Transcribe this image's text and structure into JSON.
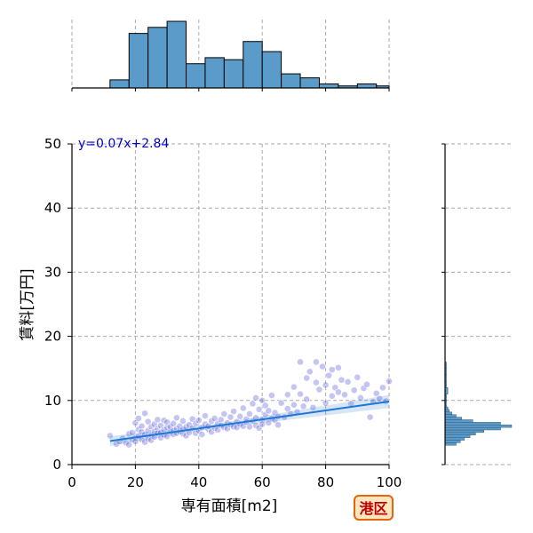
{
  "chart_data": {
    "type": "scatter",
    "xlabel": "専有面積[m2]",
    "ylabel": "賃料[万円]",
    "xlim": [
      0,
      100
    ],
    "ylim": [
      0,
      50
    ],
    "xticks": [
      0,
      20,
      40,
      60,
      80,
      100
    ],
    "yticks": [
      0,
      10,
      20,
      30,
      40,
      50
    ],
    "grid": true,
    "annotation": "y=0.07x+2.84",
    "badge": "港区",
    "regression": {
      "slope": 0.07,
      "intercept": 2.84,
      "x_range": [
        12,
        100
      ]
    },
    "colors": {
      "points": "#5a5ad6",
      "regression": "#1f77d4",
      "hist": "#5b9bc9",
      "annotation": "#0000cc",
      "badge_fill": "#ffe5c0",
      "badge_border": "#e8640a",
      "badge_text": "#c00000"
    },
    "x_histogram": {
      "bin_edges": [
        12,
        18,
        24,
        30,
        36,
        42,
        48,
        54,
        60,
        66,
        72,
        78,
        84,
        90,
        96,
        100
      ],
      "counts": [
        4,
        27,
        30,
        33,
        12,
        15,
        14,
        23,
        18,
        7,
        5,
        2,
        1,
        2,
        1
      ]
    },
    "y_histogram": {
      "bin_edges": [
        3,
        3.4,
        3.8,
        4.2,
        4.6,
        5.0,
        5.4,
        5.8,
        6.2,
        6.6,
        7.0,
        7.4,
        7.8,
        8.2,
        8.6,
        9.0,
        10.0,
        11.0,
        12.0,
        13.0,
        14.0,
        15.0,
        16.0
      ],
      "counts": [
        8,
        11,
        14,
        18,
        22,
        28,
        40,
        48,
        40,
        20,
        12,
        8,
        5,
        3,
        2,
        1,
        1,
        2,
        1,
        1,
        1,
        1
      ]
    },
    "points": [
      [
        12,
        4.5
      ],
      [
        14,
        3.2
      ],
      [
        15,
        3.6
      ],
      [
        16,
        4.1
      ],
      [
        17,
        3.4
      ],
      [
        18,
        4.8
      ],
      [
        18,
        3.1
      ],
      [
        19,
        5.0
      ],
      [
        19,
        3.9
      ],
      [
        20,
        6.5
      ],
      [
        20,
        4.2
      ],
      [
        20,
        3.6
      ],
      [
        21,
        5.5
      ],
      [
        21,
        7.2
      ],
      [
        21,
        4.4
      ],
      [
        22,
        6.0
      ],
      [
        22,
        3.9
      ],
      [
        22,
        5.1
      ],
      [
        23,
        4.7
      ],
      [
        23,
        8.0
      ],
      [
        23,
        3.5
      ],
      [
        24,
        5.3
      ],
      [
        24,
        6.7
      ],
      [
        24,
        4.0
      ],
      [
        25,
        5.9
      ],
      [
        25,
        4.6
      ],
      [
        25,
        3.8
      ],
      [
        26,
        5.2
      ],
      [
        26,
        6.3
      ],
      [
        26,
        4.3
      ],
      [
        27,
        5.6
      ],
      [
        27,
        4.9
      ],
      [
        27,
        7.0
      ],
      [
        28,
        5.0
      ],
      [
        28,
        6.1
      ],
      [
        28,
        4.2
      ],
      [
        29,
        5.4
      ],
      [
        29,
        6.9
      ],
      [
        29,
        4.6
      ],
      [
        30,
        5.8
      ],
      [
        30,
        4.4
      ],
      [
        30,
        6.6
      ],
      [
        31,
        5.1
      ],
      [
        31,
        5.9
      ],
      [
        32,
        4.7
      ],
      [
        32,
        6.4
      ],
      [
        32,
        5.3
      ],
      [
        33,
        5.6
      ],
      [
        33,
        4.9
      ],
      [
        33,
        7.3
      ],
      [
        34,
        5.2
      ],
      [
        34,
        6.0
      ],
      [
        35,
        4.8
      ],
      [
        35,
        6.8
      ],
      [
        35,
        5.5
      ],
      [
        36,
        5.9
      ],
      [
        36,
        4.5
      ],
      [
        37,
        6.2
      ],
      [
        37,
        5.0
      ],
      [
        38,
        5.7
      ],
      [
        38,
        7.1
      ],
      [
        39,
        4.9
      ],
      [
        39,
        6.4
      ],
      [
        40,
        5.3
      ],
      [
        40,
        6.9
      ],
      [
        41,
        5.8
      ],
      [
        41,
        4.7
      ],
      [
        42,
        6.3
      ],
      [
        42,
        7.6
      ],
      [
        43,
        5.5
      ],
      [
        43,
        6.0
      ],
      [
        44,
        6.8
      ],
      [
        44,
        5.1
      ],
      [
        45,
        7.2
      ],
      [
        45,
        5.7
      ],
      [
        46,
        6.4
      ],
      [
        46,
        5.4
      ],
      [
        47,
        7.0
      ],
      [
        47,
        6.1
      ],
      [
        48,
        5.8
      ],
      [
        48,
        7.9
      ],
      [
        49,
        6.5
      ],
      [
        49,
        5.6
      ],
      [
        50,
        7.4
      ],
      [
        50,
        6.2
      ],
      [
        51,
        5.9
      ],
      [
        51,
        8.3
      ],
      [
        52,
        6.7
      ],
      [
        52,
        5.8
      ],
      [
        53,
        7.5
      ],
      [
        53,
        6.3
      ],
      [
        54,
        8.8
      ],
      [
        54,
        6.0
      ],
      [
        55,
        7.1
      ],
      [
        55,
        6.6
      ],
      [
        56,
        7.9
      ],
      [
        56,
        5.9
      ],
      [
        57,
        9.5
      ],
      [
        57,
        6.8
      ],
      [
        58,
        10.4
      ],
      [
        58,
        7.3
      ],
      [
        58,
        6.1
      ],
      [
        59,
        8.6
      ],
      [
        59,
        5.7
      ],
      [
        60,
        10.0
      ],
      [
        60,
        7.0
      ],
      [
        60,
        6.3
      ],
      [
        61,
        9.2
      ],
      [
        61,
        7.8
      ],
      [
        62,
        6.5
      ],
      [
        62,
        8.4
      ],
      [
        63,
        7.2
      ],
      [
        63,
        10.8
      ],
      [
        64,
        6.9
      ],
      [
        64,
        8.1
      ],
      [
        65,
        7.5
      ],
      [
        65,
        6.2
      ],
      [
        66,
        9.6
      ],
      [
        67,
        7.4
      ],
      [
        68,
        8.7
      ],
      [
        68,
        10.9
      ],
      [
        69,
        7.9
      ],
      [
        70,
        12.1
      ],
      [
        70,
        9.3
      ],
      [
        71,
        8.2
      ],
      [
        72,
        16.0
      ],
      [
        72,
        11.0
      ],
      [
        73,
        9.1
      ],
      [
        74,
        13.5
      ],
      [
        74,
        10.2
      ],
      [
        75,
        14.5
      ],
      [
        76,
        8.9
      ],
      [
        77,
        16.0
      ],
      [
        77,
        12.8
      ],
      [
        78,
        11.7
      ],
      [
        79,
        15.3
      ],
      [
        80,
        9.6
      ],
      [
        80,
        12.4
      ],
      [
        81,
        13.9
      ],
      [
        82,
        10.7
      ],
      [
        82,
        14.8
      ],
      [
        83,
        12.0
      ],
      [
        84,
        11.3
      ],
      [
        84,
        15.1
      ],
      [
        85,
        13.2
      ],
      [
        86,
        10.9
      ],
      [
        87,
        12.9
      ],
      [
        88,
        9.5
      ],
      [
        89,
        11.6
      ],
      [
        90,
        13.6
      ],
      [
        91,
        10.4
      ],
      [
        92,
        11.9
      ],
      [
        93,
        12.5
      ],
      [
        94,
        7.4
      ],
      [
        95,
        9.8
      ],
      [
        96,
        11.1
      ],
      [
        97,
        10.3
      ],
      [
        98,
        12.0
      ],
      [
        99,
        9.9
      ],
      [
        100,
        13.0
      ]
    ]
  }
}
